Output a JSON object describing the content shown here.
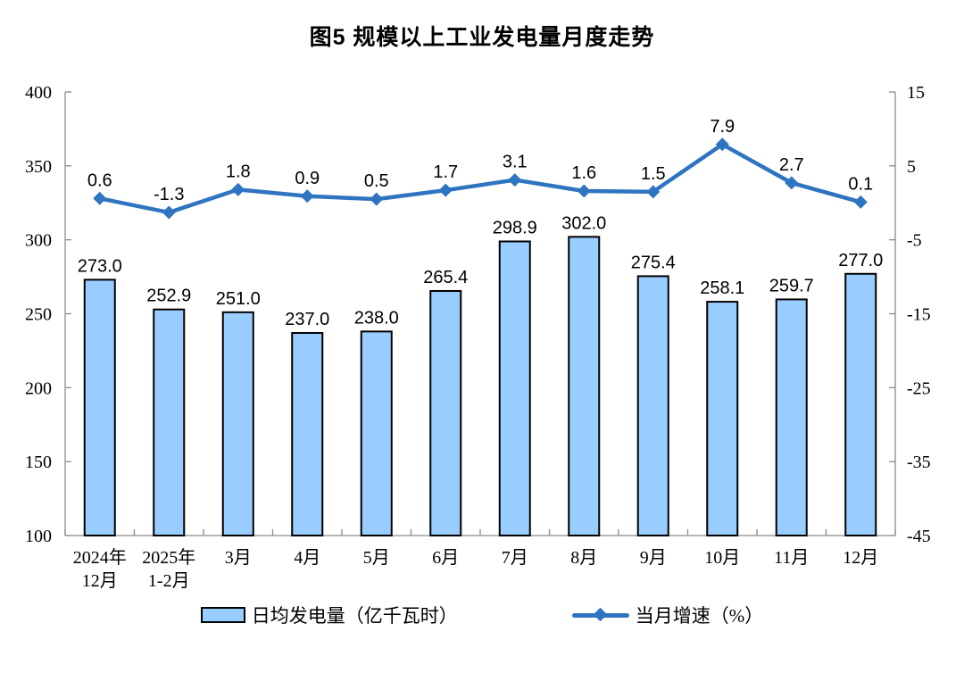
{
  "title": "图5  规模以上工业发电量月度走势",
  "colors": {
    "bar_fill": "#99CCFF",
    "bar_border": "#000000",
    "line": "#2E74C0",
    "axis": "#8C8C8C",
    "text": "#000000"
  },
  "legend": [
    {
      "label": "日均发电量（亿千瓦时）",
      "type": "bar"
    },
    {
      "label": "当月增速（%）",
      "type": "line"
    }
  ],
  "chart_data": {
    "type": "bar+line",
    "title": "图5  规模以上工业发电量月度走势",
    "categories": [
      [
        "2024年",
        "12月"
      ],
      [
        "2025年",
        "1-2月"
      ],
      [
        "3月"
      ],
      [
        "4月"
      ],
      [
        "5月"
      ],
      [
        "6月"
      ],
      [
        "7月"
      ],
      [
        "8月"
      ],
      [
        "9月"
      ],
      [
        "10月"
      ],
      [
        "11月"
      ],
      [
        "12月"
      ]
    ],
    "series": [
      {
        "name": "日均发电量（亿千瓦时）",
        "type": "bar",
        "axis": "left",
        "values": [
          273.0,
          252.9,
          251.0,
          237.0,
          238.0,
          265.4,
          298.9,
          302.0,
          275.4,
          258.1,
          259.7,
          277.0
        ]
      },
      {
        "name": "当月增速（%）",
        "type": "line",
        "axis": "right",
        "values": [
          0.6,
          -1.3,
          1.8,
          0.9,
          0.5,
          1.7,
          3.1,
          1.6,
          1.5,
          7.9,
          2.7,
          0.1
        ]
      }
    ],
    "left_axis": {
      "min": 100,
      "max": 400,
      "step": 50,
      "ticks": [
        400,
        350,
        300,
        250,
        200,
        150,
        100
      ]
    },
    "right_axis": {
      "min": -45,
      "max": 15,
      "step": 10,
      "ticks": [
        15,
        5,
        -5,
        -15,
        -25,
        -35,
        -45
      ]
    },
    "grid": false,
    "legend_position": "bottom",
    "value_label_decimals": 1
  }
}
